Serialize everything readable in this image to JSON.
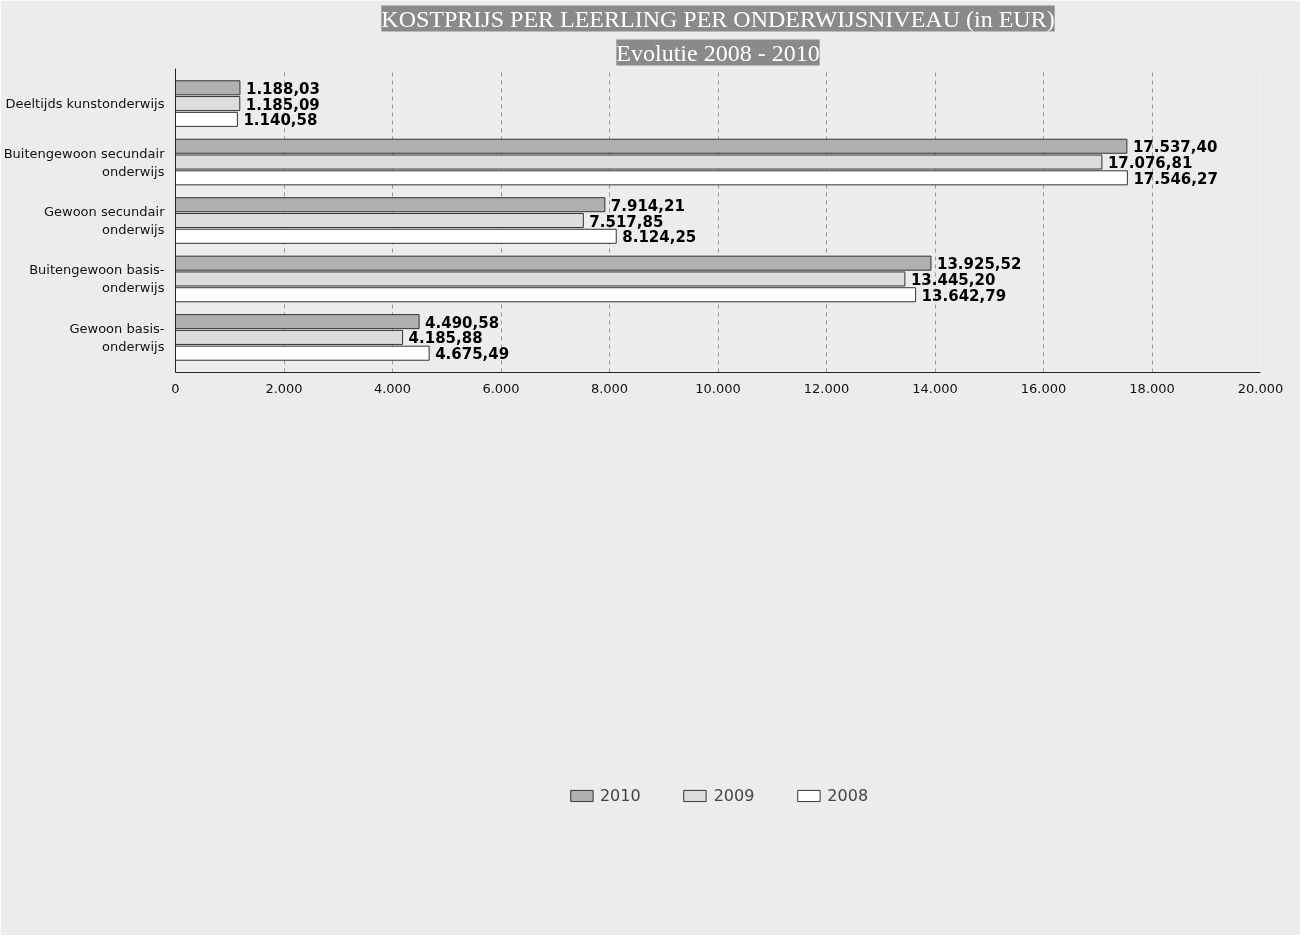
{
  "chart_data": {
    "type": "bar",
    "orientation": "horizontal",
    "title": "KOSTPRIJS PER LEERLING PER ONDERWIJSNIVEAU (in EUR)",
    "subtitle": "Evolutie 2008 - 2010",
    "categories": [
      "Deeltijds kunstonderwijs",
      "Buitengewoon secundair\nonderwijs",
      "Gewoon secundair\nonderwijs",
      "Buitengewoon basis-\nonderwijs",
      "Gewoon basis-\nonderwijs"
    ],
    "series": [
      {
        "name": "2010",
        "color": "#b0b0b0",
        "values": [
          1188.03,
          17537.4,
          7914.21,
          13925.52,
          4490.58
        ],
        "value_labels": [
          "1.188,03",
          "17.537,40",
          "7.914,21",
          "13.925,52",
          "4.490,58"
        ]
      },
      {
        "name": "2009",
        "color": "#dcdcdc",
        "values": [
          1185.09,
          17076.81,
          7517.85,
          13445.2,
          4185.88
        ],
        "value_labels": [
          "1.185,09",
          "17.076,81",
          "7.517,85",
          "13.445,20",
          "4.185,88"
        ]
      },
      {
        "name": "2008",
        "color": "#ffffff",
        "values": [
          1140.58,
          17546.27,
          8124.25,
          13642.79,
          4675.49
        ],
        "value_labels": [
          "1.140,58",
          "17.546,27",
          "8.124,25",
          "13.642,79",
          "4.675,49"
        ]
      }
    ],
    "xlim": [
      0,
      20000
    ],
    "xticks": [
      0,
      {
        "value": 2000,
        "label": "2.000"
      },
      {
        "value": 4000,
        "label": "4.000"
      },
      {
        "value": 6000,
        "label": "6.000"
      },
      {
        "value": 8000,
        "label": "8.000"
      },
      {
        "value": 10000,
        "label": "10.000"
      },
      {
        "value": 12000,
        "label": "12.000"
      },
      {
        "value": 14000,
        "label": "14.000"
      },
      {
        "value": 16000,
        "label": "16.000"
      },
      {
        "value": 18000,
        "label": "18.000"
      },
      {
        "value": 20000,
        "label": "20.000"
      }
    ],
    "grid": "x",
    "legend": "bottom"
  }
}
